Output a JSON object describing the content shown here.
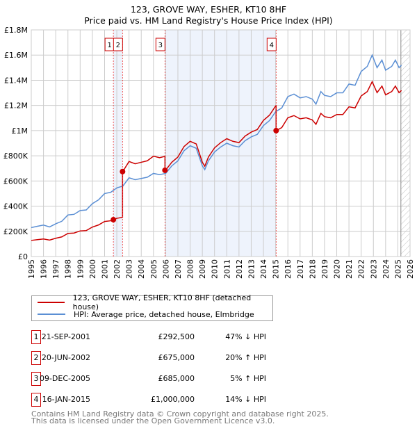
{
  "title": "123, GROVE WAY, ESHER, KT10 8HF",
  "subtitle": "Price paid vs. HM Land Registry's House Price Index (HPI)",
  "legend": {
    "property": "123, GROVE WAY, ESHER, KT10 8HF (detached house)",
    "hpi": "HPI: Average price, detached house, Elmbridge"
  },
  "colors": {
    "property": "#cc0000",
    "hpi": "#5b8fd4",
    "shade": "#eef3fc"
  },
  "transactions": [
    {
      "n": "1",
      "date": "21-SEP-2001",
      "price": "£292,500",
      "hpi": "47% ↓ HPI",
      "t": 2001.72,
      "v": 292500
    },
    {
      "n": "2",
      "date": "20-JUN-2002",
      "price": "£675,000",
      "hpi": "20% ↑ HPI",
      "t": 2002.47,
      "v": 675000
    },
    {
      "n": "3",
      "date": "09-DEC-2005",
      "price": "£685,000",
      "hpi": "5% ↑ HPI",
      "t": 2005.94,
      "v": 685000
    },
    {
      "n": "4",
      "date": "16-JAN-2015",
      "price": "£1,000,000",
      "hpi": "14% ↓ HPI",
      "t": 2015.04,
      "v": 1000000
    }
  ],
  "footer": [
    "Contains HM Land Registry data © Crown copyright and database right 2025.",
    "This data is licensed under the Open Government Licence v3.0."
  ],
  "chart_data": {
    "type": "line",
    "xlim": [
      1995,
      2026
    ],
    "ylim": [
      0,
      1800000
    ],
    "xticks": [
      "1995",
      "1996",
      "1997",
      "1998",
      "1999",
      "2000",
      "2001",
      "2002",
      "2003",
      "2004",
      "2005",
      "2006",
      "2007",
      "2008",
      "2009",
      "2010",
      "2011",
      "2012",
      "2013",
      "2014",
      "2015",
      "2016",
      "2017",
      "2018",
      "2019",
      "2020",
      "2021",
      "2022",
      "2023",
      "2024",
      "2025",
      "2026"
    ],
    "yticks": [
      {
        "v": 0,
        "l": "£0"
      },
      {
        "v": 200000,
        "l": "£200K"
      },
      {
        "v": 400000,
        "l": "£400K"
      },
      {
        "v": 600000,
        "l": "£600K"
      },
      {
        "v": 800000,
        "l": "£800K"
      },
      {
        "v": 1000000,
        "l": "£1M"
      },
      {
        "v": 1200000,
        "l": "£1.2M"
      },
      {
        "v": 1400000,
        "l": "£1.4M"
      },
      {
        "v": 1600000,
        "l": "£1.6M"
      },
      {
        "v": 1800000,
        "l": "£1.8M"
      }
    ],
    "forecast_from": 2025.25,
    "hpi_series": {
      "name": "HPI",
      "x": [
        1995,
        1995.5,
        1996,
        1996.5,
        1997,
        1997.5,
        1998,
        1998.5,
        1999,
        1999.5,
        2000,
        2000.5,
        2001,
        2001.5,
        2002,
        2002.5,
        2003,
        2003.5,
        2004,
        2004.5,
        2005,
        2005.5,
        2006,
        2006.5,
        2007,
        2007.5,
        2008,
        2008.5,
        2009,
        2009.2,
        2009.5,
        2010,
        2010.5,
        2011,
        2011.5,
        2012,
        2012.5,
        2013,
        2013.5,
        2014,
        2014.5,
        2015,
        2015.5,
        2016,
        2016.5,
        2017,
        2017.5,
        2018,
        2018.3,
        2018.7,
        2019,
        2019.5,
        2020,
        2020.5,
        2021,
        2021.5,
        2022,
        2022.5,
        2022.9,
        2023.3,
        2023.7,
        2024,
        2024.5,
        2024.8,
        2025.1,
        2025.3
      ],
      "y": [
        230000,
        240000,
        250000,
        235000,
        260000,
        280000,
        330000,
        335000,
        365000,
        370000,
        420000,
        450000,
        500000,
        510000,
        545000,
        560000,
        625000,
        610000,
        620000,
        630000,
        660000,
        650000,
        660000,
        720000,
        760000,
        840000,
        880000,
        860000,
        720000,
        690000,
        760000,
        830000,
        870000,
        900000,
        880000,
        870000,
        920000,
        950000,
        970000,
        1040000,
        1080000,
        1150000,
        1180000,
        1270000,
        1290000,
        1260000,
        1270000,
        1250000,
        1210000,
        1310000,
        1280000,
        1270000,
        1300000,
        1300000,
        1370000,
        1360000,
        1470000,
        1510000,
        1600000,
        1500000,
        1560000,
        1480000,
        1510000,
        1560000,
        1500000,
        1520000
      ]
    }
  }
}
